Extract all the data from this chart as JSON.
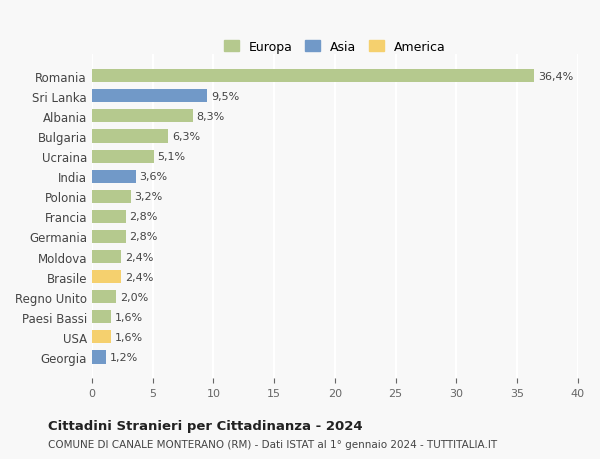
{
  "countries": [
    "Romania",
    "Sri Lanka",
    "Albania",
    "Bulgaria",
    "Ucraina",
    "India",
    "Polonia",
    "Francia",
    "Germania",
    "Moldova",
    "Brasile",
    "Regno Unito",
    "Paesi Bassi",
    "USA",
    "Georgia"
  ],
  "values": [
    36.4,
    9.5,
    8.3,
    6.3,
    5.1,
    3.6,
    3.2,
    2.8,
    2.8,
    2.4,
    2.4,
    2.0,
    1.6,
    1.6,
    1.2
  ],
  "labels": [
    "36,4%",
    "9,5%",
    "8,3%",
    "6,3%",
    "5,1%",
    "3,6%",
    "3,2%",
    "2,8%",
    "2,8%",
    "2,4%",
    "2,4%",
    "2,0%",
    "1,6%",
    "1,6%",
    "1,2%"
  ],
  "continents": [
    "Europa",
    "Asia",
    "Europa",
    "Europa",
    "Europa",
    "Asia",
    "Europa",
    "Europa",
    "Europa",
    "Europa",
    "America",
    "Europa",
    "Europa",
    "America",
    "Asia"
  ],
  "colors": {
    "Europa": "#b5c98e",
    "Asia": "#7199c8",
    "America": "#f5d06e"
  },
  "xlim": [
    0,
    40
  ],
  "xticks": [
    0,
    5,
    10,
    15,
    20,
    25,
    30,
    35,
    40
  ],
  "title": "Cittadini Stranieri per Cittadinanza - 2024",
  "subtitle": "COMUNE DI CANALE MONTERANO (RM) - Dati ISTAT al 1° gennaio 2024 - TUTTITALIA.IT",
  "background_color": "#f8f8f8",
  "grid_color": "#ffffff",
  "bar_height": 0.65
}
